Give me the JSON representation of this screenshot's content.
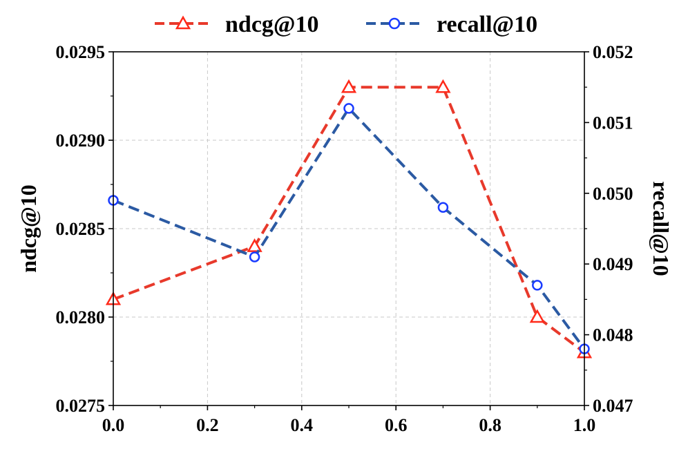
{
  "chart_data": {
    "type": "line",
    "x": [
      0.0,
      0.3,
      0.5,
      0.7,
      0.9,
      1.0
    ],
    "xlim": [
      0.0,
      1.0
    ],
    "x_ticks": [
      "0.0",
      "0.2",
      "0.4",
      "0.6",
      "0.8",
      "1.0"
    ],
    "grid": true,
    "legend_position": "top-center",
    "series": [
      {
        "name": "ndcg@10",
        "axis": "left",
        "values": [
          0.0281,
          0.0284,
          0.0293,
          0.0293,
          0.028,
          0.0278
        ],
        "color": "#e8392b",
        "marker_color": "#ff2a1a",
        "marker": "triangle",
        "linestyle": "dashed"
      },
      {
        "name": "recall@10",
        "axis": "right",
        "values": [
          0.0499,
          0.0491,
          0.0512,
          0.0498,
          0.0487,
          0.0478
        ],
        "color": "#2b5aa3",
        "marker_color": "#1a3cff",
        "marker": "circle",
        "linestyle": "dashed"
      }
    ],
    "y_left": {
      "label": "ndcg@10",
      "ylim": [
        0.0275,
        0.0295
      ],
      "ticks": [
        "0.0275",
        "0.0280",
        "0.0285",
        "0.0290",
        "0.0295"
      ]
    },
    "y_right": {
      "label": "recall@10",
      "ylim": [
        0.047,
        0.052
      ],
      "ticks": [
        "0.047",
        "0.048",
        "0.049",
        "0.050",
        "0.051",
        "0.052"
      ]
    }
  }
}
